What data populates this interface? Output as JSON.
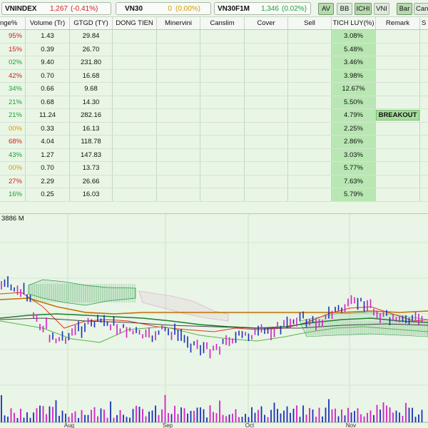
{
  "index_bar": {
    "items": [
      {
        "name": "VNINDEX",
        "value": "1,267",
        "change": "(-0.41%)",
        "state": "neg"
      },
      {
        "name": "VN30",
        "value": "0",
        "change": "(0.00%)",
        "state": "ref"
      },
      {
        "name": "VN30F1M",
        "value": "1,346",
        "change": "(0.02%)",
        "state": "pos"
      }
    ],
    "buttons": [
      "AV",
      "BB",
      "ICHI",
      "VNI",
      "Bar",
      "Cand"
    ]
  },
  "table": {
    "headers": [
      "nge%",
      "Volume (Tr)",
      "GTGD (TY)",
      "DONG TIEN",
      "Minervini",
      "Canslim",
      "Cover",
      "Sell",
      "TICH LUY(%)",
      "Remark",
      "S"
    ],
    "rows": [
      {
        "change": "95%",
        "state": "neg",
        "volume": "1.43",
        "gtgd": "29.84",
        "tich_luy": "3.08%",
        "remark": ""
      },
      {
        "change": "15%",
        "state": "neg",
        "volume": "0.39",
        "gtgd": "26.70",
        "tich_luy": "5.48%",
        "remark": ""
      },
      {
        "change": "02%",
        "state": "pos",
        "volume": "9.40",
        "gtgd": "231.80",
        "tich_luy": "3.46%",
        "remark": ""
      },
      {
        "change": "42%",
        "state": "neg",
        "volume": "0.70",
        "gtgd": "16.68",
        "tich_luy": "3.98%",
        "remark": ""
      },
      {
        "change": "34%",
        "state": "pos",
        "volume": "0.66",
        "gtgd": "9.68",
        "tich_luy": "12.67%",
        "remark": ""
      },
      {
        "change": "21%",
        "state": "pos",
        "volume": "0.68",
        "gtgd": "14.30",
        "tich_luy": "5.50%",
        "remark": ""
      },
      {
        "change": "21%",
        "state": "pos",
        "volume": "11.24",
        "gtgd": "282.16",
        "tich_luy": "4.79%",
        "remark": "BREAKOUT"
      },
      {
        "change": "00%",
        "state": "ref",
        "volume": "0.33",
        "gtgd": "16.13",
        "tich_luy": "2.25%",
        "remark": ""
      },
      {
        "change": "68%",
        "state": "neg",
        "volume": "4.04",
        "gtgd": "118.78",
        "tich_luy": "2.86%",
        "remark": ""
      },
      {
        "change": "43%",
        "state": "pos",
        "volume": "1.27",
        "gtgd": "147.83",
        "tich_luy": "3.03%",
        "remark": ""
      },
      {
        "change": "00%",
        "state": "ref",
        "volume": "0.70",
        "gtgd": "13.73",
        "tich_luy": "5.77%",
        "remark": ""
      },
      {
        "change": "27%",
        "state": "neg",
        "volume": "2.29",
        "gtgd": "26.66",
        "tich_luy": "7.63%",
        "remark": ""
      },
      {
        "change": "16%",
        "state": "pos",
        "volume": "0.25",
        "gtgd": "16.03",
        "tich_luy": "5.79%",
        "remark": ""
      }
    ]
  },
  "chart": {
    "title": "3886 M",
    "months": [
      "Aug",
      "Sep",
      "Oct",
      "Nov"
    ],
    "colors": {
      "up": "#1a2fb8",
      "down": "#d21fc8",
      "cloud": "#2e9b4a",
      "kijun": "#c07000",
      "tenkan": "#e0391d",
      "ma": "#1b7f2b"
    }
  }
}
